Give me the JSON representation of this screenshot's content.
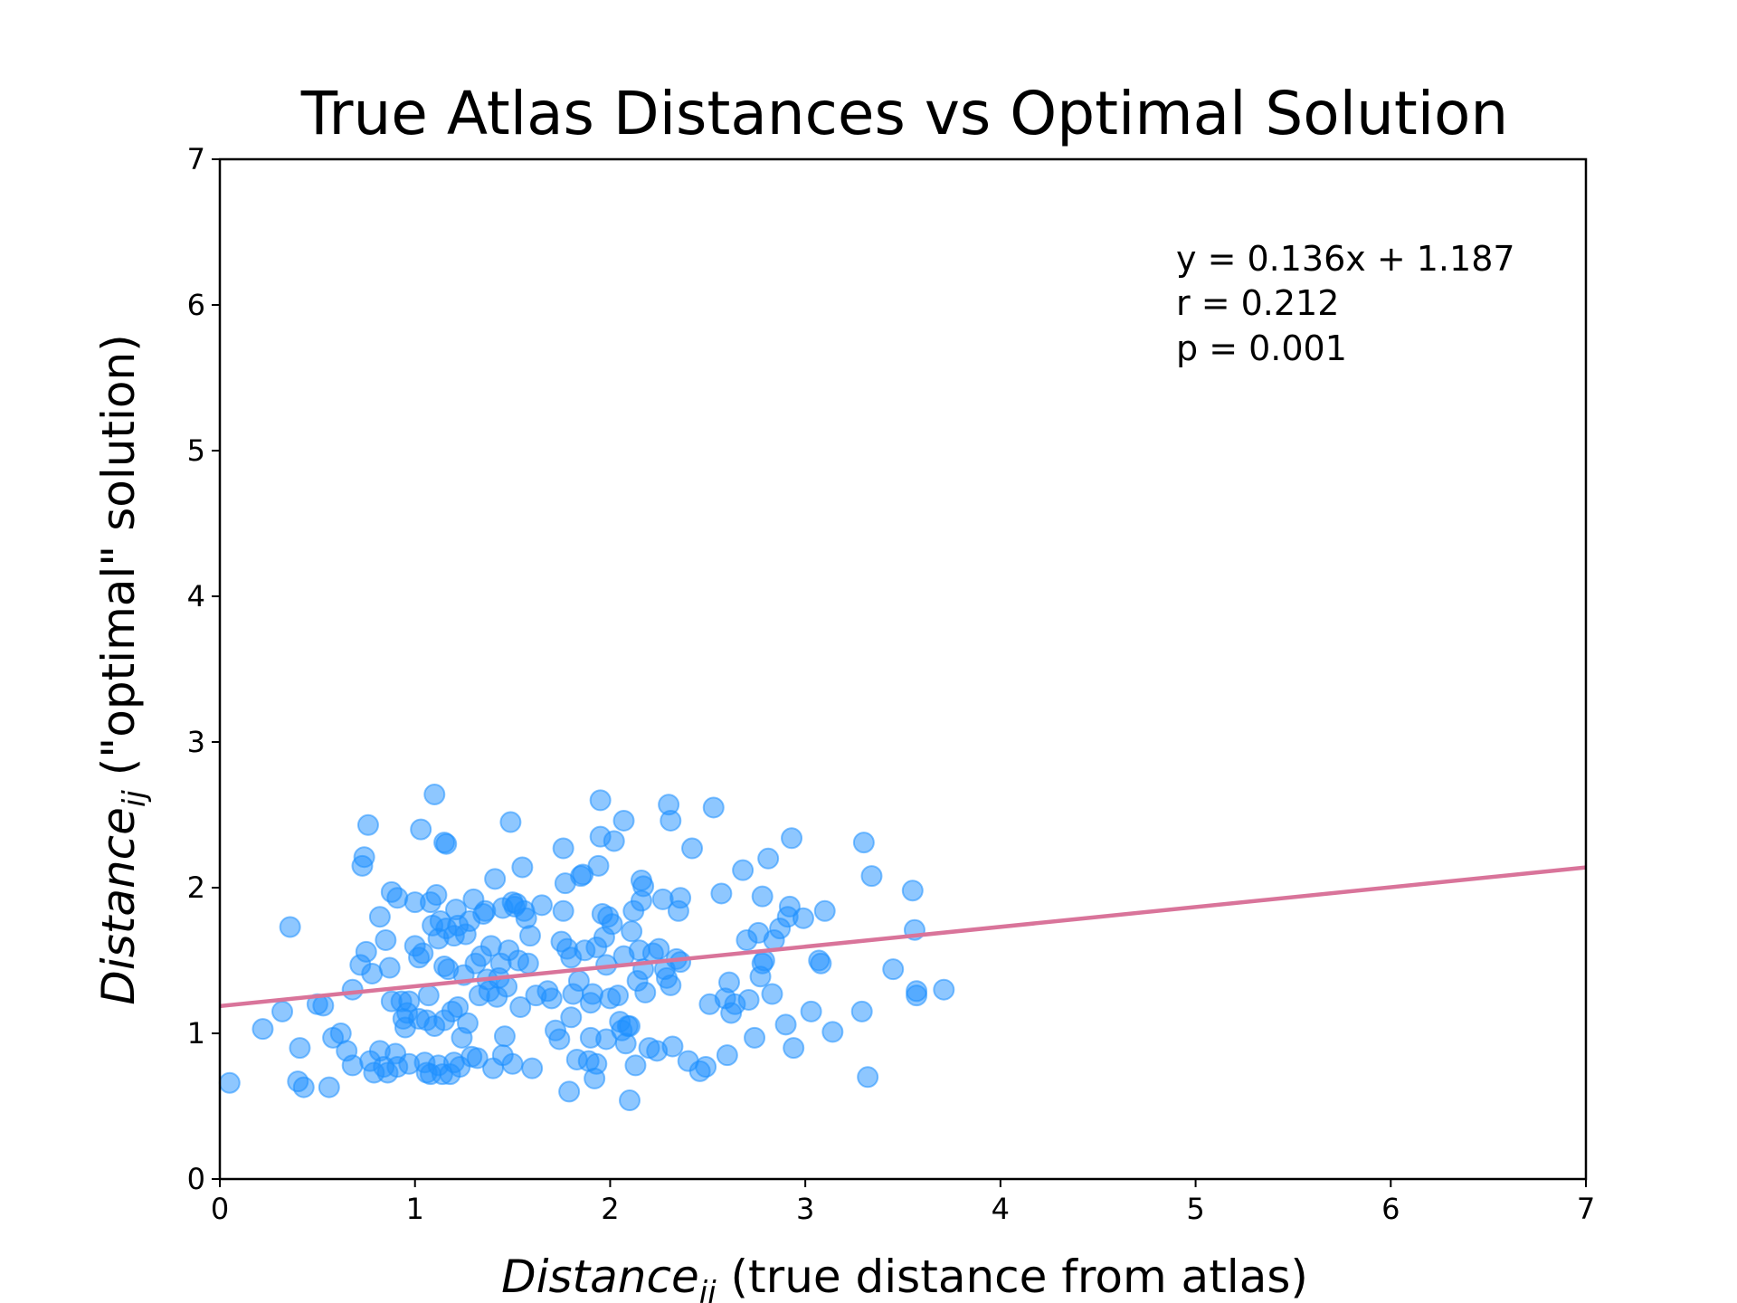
{
  "chart_data": {
    "type": "scatter",
    "title": "True Atlas Distances vs Optimal Solution",
    "xlabel": {
      "main": "Distance",
      "sub": "ij",
      "rest": " (true distance from atlas)"
    },
    "ylabel": {
      "main": "Distance",
      "sub": "ij",
      "rest": " (\"optimal\" solution)"
    },
    "xlim": [
      0,
      7
    ],
    "ylim": [
      0,
      7
    ],
    "xticks": [
      "0",
      "1",
      "2",
      "3",
      "4",
      "5",
      "6",
      "7"
    ],
    "yticks": [
      "0",
      "1",
      "2",
      "3",
      "4",
      "5",
      "6",
      "7"
    ],
    "grid": false,
    "point_color": "#1E90FF",
    "line_color": "#D9749A",
    "fit_line": {
      "slope": 0.136,
      "intercept": 1.187
    },
    "annotations": [
      "y = 0.136x + 1.187",
      "r = 0.212",
      "p = 0.001"
    ],
    "points": [
      [
        0.05,
        0.66
      ],
      [
        0.22,
        1.03
      ],
      [
        0.32,
        1.15
      ],
      [
        0.36,
        1.73
      ],
      [
        0.4,
        0.67
      ],
      [
        0.41,
        0.9
      ],
      [
        0.43,
        0.63
      ],
      [
        0.5,
        1.2
      ],
      [
        0.53,
        1.19
      ],
      [
        0.56,
        0.63
      ],
      [
        0.58,
        0.97
      ],
      [
        0.62,
        1.0
      ],
      [
        0.65,
        0.88
      ],
      [
        0.68,
        0.78
      ],
      [
        0.68,
        1.3
      ],
      [
        0.72,
        1.47
      ],
      [
        0.73,
        2.15
      ],
      [
        0.74,
        2.21
      ],
      [
        0.75,
        1.56
      ],
      [
        0.76,
        2.43
      ],
      [
        0.77,
        0.81
      ],
      [
        0.78,
        1.41
      ],
      [
        0.79,
        0.73
      ],
      [
        0.82,
        1.8
      ],
      [
        0.82,
        0.88
      ],
      [
        0.84,
        0.77
      ],
      [
        0.85,
        1.64
      ],
      [
        0.86,
        0.73
      ],
      [
        0.87,
        1.45
      ],
      [
        0.88,
        1.97
      ],
      [
        0.88,
        1.22
      ],
      [
        0.9,
        0.86
      ],
      [
        0.91,
        1.93
      ],
      [
        0.91,
        0.77
      ],
      [
        0.93,
        1.22
      ],
      [
        0.94,
        1.1
      ],
      [
        0.95,
        1.04
      ],
      [
        0.96,
        1.14
      ],
      [
        0.97,
        0.79
      ],
      [
        0.97,
        1.22
      ],
      [
        1.0,
        1.9
      ],
      [
        1.0,
        1.6
      ],
      [
        1.02,
        1.52
      ],
      [
        1.02,
        1.1
      ],
      [
        1.03,
        2.4
      ],
      [
        1.04,
        1.55
      ],
      [
        1.05,
        0.8
      ],
      [
        1.06,
        1.09
      ],
      [
        1.06,
        0.73
      ],
      [
        1.07,
        1.26
      ],
      [
        1.08,
        1.9
      ],
      [
        1.08,
        0.72
      ],
      [
        1.09,
        1.74
      ],
      [
        1.1,
        1.05
      ],
      [
        1.1,
        2.64
      ],
      [
        1.11,
        1.95
      ],
      [
        1.12,
        1.65
      ],
      [
        1.12,
        0.78
      ],
      [
        1.13,
        1.77
      ],
      [
        1.14,
        0.72
      ],
      [
        1.15,
        2.31
      ],
      [
        1.15,
        1.46
      ],
      [
        1.15,
        1.09
      ],
      [
        1.16,
        2.3
      ],
      [
        1.16,
        1.72
      ],
      [
        1.17,
        1.44
      ],
      [
        1.18,
        0.72
      ],
      [
        1.19,
        1.15
      ],
      [
        1.2,
        1.67
      ],
      [
        1.2,
        0.8
      ],
      [
        1.21,
        1.85
      ],
      [
        1.22,
        1.74
      ],
      [
        1.22,
        1.18
      ],
      [
        1.23,
        0.77
      ],
      [
        1.24,
        0.97
      ],
      [
        1.25,
        1.4
      ],
      [
        1.26,
        1.68
      ],
      [
        1.27,
        1.07
      ],
      [
        1.28,
        1.77
      ],
      [
        1.29,
        0.84
      ],
      [
        1.3,
        1.92
      ],
      [
        1.31,
        1.48
      ],
      [
        1.32,
        0.83
      ],
      [
        1.33,
        1.26
      ],
      [
        1.34,
        1.53
      ],
      [
        1.35,
        1.82
      ],
      [
        1.36,
        1.84
      ],
      [
        1.37,
        1.37
      ],
      [
        1.38,
        1.29
      ],
      [
        1.39,
        1.6
      ],
      [
        1.4,
        0.76
      ],
      [
        1.41,
        2.06
      ],
      [
        1.42,
        1.25
      ],
      [
        1.43,
        1.38
      ],
      [
        1.44,
        1.48
      ],
      [
        1.45,
        1.86
      ],
      [
        1.45,
        0.85
      ],
      [
        1.46,
        0.98
      ],
      [
        1.47,
        1.32
      ],
      [
        1.48,
        1.57
      ],
      [
        1.49,
        2.45
      ],
      [
        1.5,
        1.9
      ],
      [
        1.5,
        0.79
      ],
      [
        1.51,
        1.87
      ],
      [
        1.52,
        1.89
      ],
      [
        1.53,
        1.5
      ],
      [
        1.54,
        1.18
      ],
      [
        1.55,
        2.14
      ],
      [
        1.56,
        1.84
      ],
      [
        1.57,
        1.79
      ],
      [
        1.58,
        1.48
      ],
      [
        1.59,
        1.67
      ],
      [
        1.6,
        0.76
      ],
      [
        1.62,
        1.26
      ],
      [
        1.65,
        1.88
      ],
      [
        1.68,
        1.29
      ],
      [
        1.7,
        1.24
      ],
      [
        1.72,
        1.02
      ],
      [
        1.74,
        0.96
      ],
      [
        1.75,
        1.63
      ],
      [
        1.76,
        2.27
      ],
      [
        1.76,
        1.84
      ],
      [
        1.77,
        2.03
      ],
      [
        1.78,
        1.58
      ],
      [
        1.79,
        0.6
      ],
      [
        1.8,
        1.11
      ],
      [
        1.8,
        1.52
      ],
      [
        1.81,
        1.27
      ],
      [
        1.83,
        0.82
      ],
      [
        1.84,
        1.36
      ],
      [
        1.85,
        2.08
      ],
      [
        1.86,
        2.09
      ],
      [
        1.87,
        1.57
      ],
      [
        1.89,
        0.81
      ],
      [
        1.9,
        0.97
      ],
      [
        1.9,
        1.21
      ],
      [
        1.91,
        1.27
      ],
      [
        1.92,
        0.69
      ],
      [
        1.93,
        0.79
      ],
      [
        1.93,
        1.59
      ],
      [
        1.94,
        2.15
      ],
      [
        1.95,
        2.35
      ],
      [
        1.95,
        2.6
      ],
      [
        1.96,
        1.82
      ],
      [
        1.97,
        1.66
      ],
      [
        1.98,
        1.47
      ],
      [
        1.98,
        0.96
      ],
      [
        1.99,
        1.8
      ],
      [
        2.0,
        1.24
      ],
      [
        2.01,
        1.75
      ],
      [
        2.02,
        2.32
      ],
      [
        2.04,
        1.26
      ],
      [
        2.05,
        1.08
      ],
      [
        2.06,
        1.02
      ],
      [
        2.07,
        2.46
      ],
      [
        2.07,
        1.53
      ],
      [
        2.08,
        0.93
      ],
      [
        2.09,
        1.05
      ],
      [
        2.1,
        0.54
      ],
      [
        2.1,
        1.05
      ],
      [
        2.11,
        1.7
      ],
      [
        2.12,
        1.84
      ],
      [
        2.13,
        0.78
      ],
      [
        2.14,
        1.36
      ],
      [
        2.15,
        1.57
      ],
      [
        2.16,
        1.91
      ],
      [
        2.16,
        2.05
      ],
      [
        2.17,
        2.01
      ],
      [
        2.17,
        1.44
      ],
      [
        2.18,
        1.28
      ],
      [
        2.2,
        0.9
      ],
      [
        2.22,
        1.55
      ],
      [
        2.24,
        0.88
      ],
      [
        2.25,
        1.58
      ],
      [
        2.27,
        1.92
      ],
      [
        2.28,
        1.44
      ],
      [
        2.29,
        1.38
      ],
      [
        2.3,
        2.57
      ],
      [
        2.31,
        1.33
      ],
      [
        2.31,
        2.46
      ],
      [
        2.32,
        0.91
      ],
      [
        2.34,
        1.51
      ],
      [
        2.35,
        1.84
      ],
      [
        2.36,
        1.93
      ],
      [
        2.36,
        1.49
      ],
      [
        2.4,
        0.81
      ],
      [
        2.42,
        2.27
      ],
      [
        2.46,
        0.74
      ],
      [
        2.49,
        0.77
      ],
      [
        2.51,
        1.2
      ],
      [
        2.53,
        2.55
      ],
      [
        2.57,
        1.96
      ],
      [
        2.59,
        1.24
      ],
      [
        2.6,
        0.85
      ],
      [
        2.61,
        1.35
      ],
      [
        2.62,
        1.14
      ],
      [
        2.64,
        1.2
      ],
      [
        2.68,
        2.12
      ],
      [
        2.7,
        1.64
      ],
      [
        2.71,
        1.23
      ],
      [
        2.74,
        0.97
      ],
      [
        2.76,
        1.69
      ],
      [
        2.77,
        1.39
      ],
      [
        2.78,
        1.94
      ],
      [
        2.78,
        1.48
      ],
      [
        2.79,
        1.5
      ],
      [
        2.81,
        2.2
      ],
      [
        2.83,
        1.27
      ],
      [
        2.84,
        1.64
      ],
      [
        2.87,
        1.72
      ],
      [
        2.9,
        1.06
      ],
      [
        2.91,
        1.8
      ],
      [
        2.92,
        1.87
      ],
      [
        2.93,
        2.34
      ],
      [
        2.94,
        0.9
      ],
      [
        2.99,
        1.79
      ],
      [
        3.03,
        1.15
      ],
      [
        3.07,
        1.5
      ],
      [
        3.08,
        1.48
      ],
      [
        3.1,
        1.84
      ],
      [
        3.14,
        1.01
      ],
      [
        3.29,
        1.15
      ],
      [
        3.3,
        2.31
      ],
      [
        3.32,
        0.7
      ],
      [
        3.34,
        2.08
      ],
      [
        3.45,
        1.44
      ],
      [
        3.55,
        1.98
      ],
      [
        3.56,
        1.71
      ],
      [
        3.57,
        1.26
      ],
      [
        3.57,
        1.29
      ],
      [
        3.71,
        1.3
      ]
    ]
  }
}
